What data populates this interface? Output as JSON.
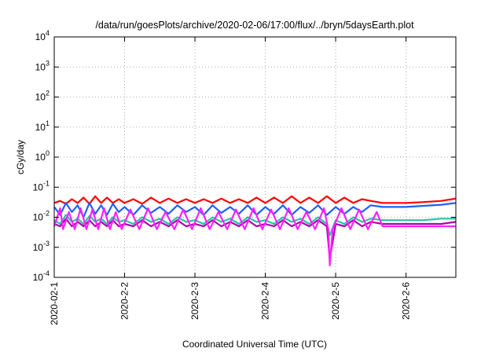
{
  "chart_data": {
    "type": "line",
    "title": "/data/run/goesPlots/archive/2020-02-06/17:00/flux/../bryn/5daysEarth.plot",
    "xlabel": "Coordinated Universal Time (UTC)",
    "ylabel": "cGy/day",
    "yscale": "log",
    "ylim": [
      0.0001,
      10000
    ],
    "xlim": [
      "2020-02-01",
      "2020-02-06 17:00"
    ],
    "grid": true,
    "legend": "none",
    "x_ticks": [
      "2020-02-1",
      "2020-2-2",
      "2020-2-3",
      "2020-2-4",
      "2020-2-5",
      "2020-2-6"
    ],
    "y_ticks": [
      {
        "value": 0.0001,
        "mant": "10",
        "exp": "-4"
      },
      {
        "value": 0.001,
        "mant": "10",
        "exp": "-3"
      },
      {
        "value": 0.01,
        "mant": "10",
        "exp": "-2"
      },
      {
        "value": 0.1,
        "mant": "10",
        "exp": "-1"
      },
      {
        "value": 1,
        "mant": "10",
        "exp": "0"
      },
      {
        "value": 10,
        "mant": "10",
        "exp": "1"
      },
      {
        "value": 100,
        "mant": "10",
        "exp": "2"
      },
      {
        "value": 1000,
        "mant": "10",
        "exp": "3"
      },
      {
        "value": 10000,
        "mant": "10",
        "exp": "4"
      }
    ],
    "series": [
      {
        "color": "#ff0000",
        "values": [
          [
            "2020-02-01 00:00",
            0.03
          ],
          [
            "2020-02-01 02:00",
            0.035
          ],
          [
            "2020-02-01 04:00",
            0.028
          ],
          [
            "2020-02-01 06:00",
            0.04
          ],
          [
            "2020-02-01 08:00",
            0.03
          ],
          [
            "2020-02-01 10:00",
            0.045
          ],
          [
            "2020-02-01 12:00",
            0.028
          ],
          [
            "2020-02-01 14:00",
            0.05
          ],
          [
            "2020-02-01 16:00",
            0.03
          ],
          [
            "2020-02-01 18:00",
            0.045
          ],
          [
            "2020-02-01 20:00",
            0.03
          ],
          [
            "2020-02-01 22:00",
            0.04
          ],
          [
            "2020-02-02 00:00",
            0.03
          ],
          [
            "2020-02-02 03:00",
            0.04
          ],
          [
            "2020-02-02 06:00",
            0.028
          ],
          [
            "2020-02-02 09:00",
            0.045
          ],
          [
            "2020-02-02 12:00",
            0.03
          ],
          [
            "2020-02-02 15:00",
            0.042
          ],
          [
            "2020-02-02 18:00",
            0.03
          ],
          [
            "2020-02-02 21:00",
            0.04
          ],
          [
            "2020-02-03 00:00",
            0.03
          ],
          [
            "2020-02-03 03:00",
            0.04
          ],
          [
            "2020-02-03 06:00",
            0.03
          ],
          [
            "2020-02-03 09:00",
            0.042
          ],
          [
            "2020-02-03 12:00",
            0.03
          ],
          [
            "2020-02-03 15:00",
            0.04
          ],
          [
            "2020-02-03 18:00",
            0.03
          ],
          [
            "2020-02-03 21:00",
            0.045
          ],
          [
            "2020-02-04 00:00",
            0.03
          ],
          [
            "2020-02-04 03:00",
            0.045
          ],
          [
            "2020-02-04 06:00",
            0.03
          ],
          [
            "2020-02-04 09:00",
            0.05
          ],
          [
            "2020-02-04 12:00",
            0.03
          ],
          [
            "2020-02-04 15:00",
            0.045
          ],
          [
            "2020-02-04 18:00",
            0.03
          ],
          [
            "2020-02-04 21:00",
            0.05
          ],
          [
            "2020-02-05 00:00",
            0.03
          ],
          [
            "2020-02-05 03:00",
            0.045
          ],
          [
            "2020-02-05 06:00",
            0.03
          ],
          [
            "2020-02-05 09:00",
            0.04
          ],
          [
            "2020-02-05 12:00",
            0.035
          ],
          [
            "2020-02-05 16:00",
            0.03
          ],
          [
            "2020-02-05 20:00",
            0.03
          ],
          [
            "2020-02-06 00:00",
            0.03
          ],
          [
            "2020-02-06 06:00",
            0.032
          ],
          [
            "2020-02-06 12:00",
            0.035
          ],
          [
            "2020-02-06 17:00",
            0.042
          ]
        ]
      },
      {
        "color": "#1f5fff",
        "values": [
          [
            "2020-02-01 00:00",
            0.022
          ],
          [
            "2020-02-01 02:00",
            0.012
          ],
          [
            "2020-02-01 04:00",
            0.03
          ],
          [
            "2020-02-01 06:00",
            0.015
          ],
          [
            "2020-02-01 08:00",
            0.025
          ],
          [
            "2020-02-01 10:00",
            0.01
          ],
          [
            "2020-02-01 12:00",
            0.03
          ],
          [
            "2020-02-01 14:00",
            0.013
          ],
          [
            "2020-02-01 16:00",
            0.025
          ],
          [
            "2020-02-01 18:00",
            0.012
          ],
          [
            "2020-02-01 20:00",
            0.028
          ],
          [
            "2020-02-01 22:00",
            0.015
          ],
          [
            "2020-02-02 00:00",
            0.022
          ],
          [
            "2020-02-02 03:00",
            0.012
          ],
          [
            "2020-02-02 06:00",
            0.025
          ],
          [
            "2020-02-02 09:00",
            0.014
          ],
          [
            "2020-02-02 12:00",
            0.022
          ],
          [
            "2020-02-02 15:00",
            0.013
          ],
          [
            "2020-02-02 18:00",
            0.025
          ],
          [
            "2020-02-02 21:00",
            0.015
          ],
          [
            "2020-02-03 00:00",
            0.022
          ],
          [
            "2020-02-03 03:00",
            0.012
          ],
          [
            "2020-02-03 06:00",
            0.025
          ],
          [
            "2020-02-03 09:00",
            0.014
          ],
          [
            "2020-02-03 12:00",
            0.022
          ],
          [
            "2020-02-03 15:00",
            0.013
          ],
          [
            "2020-02-03 18:00",
            0.025
          ],
          [
            "2020-02-03 21:00",
            0.012
          ],
          [
            "2020-02-04 00:00",
            0.022
          ],
          [
            "2020-02-04 03:00",
            0.013
          ],
          [
            "2020-02-04 06:00",
            0.025
          ],
          [
            "2020-02-04 09:00",
            0.012
          ],
          [
            "2020-02-04 12:00",
            0.022
          ],
          [
            "2020-02-04 15:00",
            0.014
          ],
          [
            "2020-02-04 18:00",
            0.025
          ],
          [
            "2020-02-04 21:00",
            0.012
          ],
          [
            "2020-02-05 00:00",
            0.022
          ],
          [
            "2020-02-05 03:00",
            0.013
          ],
          [
            "2020-02-05 06:00",
            0.022
          ],
          [
            "2020-02-05 09:00",
            0.015
          ],
          [
            "2020-02-05 12:00",
            0.025
          ],
          [
            "2020-02-05 16:00",
            0.022
          ],
          [
            "2020-02-05 20:00",
            0.022
          ],
          [
            "2020-02-06 00:00",
            0.022
          ],
          [
            "2020-02-06 06:00",
            0.024
          ],
          [
            "2020-02-06 12:00",
            0.026
          ],
          [
            "2020-02-06 17:00",
            0.03
          ]
        ]
      },
      {
        "color": "#20c8a0",
        "values": [
          [
            "2020-02-01 00:00",
            0.008
          ],
          [
            "2020-02-01 02:00",
            0.006
          ],
          [
            "2020-02-01 04:00",
            0.012
          ],
          [
            "2020-02-01 06:00",
            0.007
          ],
          [
            "2020-02-01 08:00",
            0.009
          ],
          [
            "2020-02-01 10:00",
            0.006
          ],
          [
            "2020-02-01 12:00",
            0.011
          ],
          [
            "2020-02-01 14:00",
            0.007
          ],
          [
            "2020-02-01 16:00",
            0.009
          ],
          [
            "2020-02-01 18:00",
            0.006
          ],
          [
            "2020-02-01 20:00",
            0.01
          ],
          [
            "2020-02-01 22:00",
            0.007
          ],
          [
            "2020-02-02 00:00",
            0.008
          ],
          [
            "2020-02-02 03:00",
            0.006
          ],
          [
            "2020-02-02 06:00",
            0.01
          ],
          [
            "2020-02-02 09:00",
            0.007
          ],
          [
            "2020-02-02 12:00",
            0.009
          ],
          [
            "2020-02-02 15:00",
            0.006
          ],
          [
            "2020-02-02 18:00",
            0.01
          ],
          [
            "2020-02-02 21:00",
            0.007
          ],
          [
            "2020-02-03 00:00",
            0.008
          ],
          [
            "2020-02-03 03:00",
            0.006
          ],
          [
            "2020-02-03 06:00",
            0.01
          ],
          [
            "2020-02-03 09:00",
            0.007
          ],
          [
            "2020-02-03 12:00",
            0.009
          ],
          [
            "2020-02-03 15:00",
            0.006
          ],
          [
            "2020-02-03 18:00",
            0.01
          ],
          [
            "2020-02-03 21:00",
            0.007
          ],
          [
            "2020-02-04 00:00",
            0.008
          ],
          [
            "2020-02-04 03:00",
            0.006
          ],
          [
            "2020-02-04 06:00",
            0.01
          ],
          [
            "2020-02-04 09:00",
            0.007
          ],
          [
            "2020-02-04 12:00",
            0.009
          ],
          [
            "2020-02-04 15:00",
            0.006
          ],
          [
            "2020-02-04 18:00",
            0.01
          ],
          [
            "2020-02-04 21:00",
            0.006
          ],
          [
            "2020-02-04 22:00",
            0.0025
          ],
          [
            "2020-02-05 00:00",
            0.008
          ],
          [
            "2020-02-05 03:00",
            0.006
          ],
          [
            "2020-02-05 06:00",
            0.01
          ],
          [
            "2020-02-05 09:00",
            0.007
          ],
          [
            "2020-02-05 12:00",
            0.009
          ],
          [
            "2020-02-05 16:00",
            0.008
          ],
          [
            "2020-02-05 20:00",
            0.008
          ],
          [
            "2020-02-06 00:00",
            0.008
          ],
          [
            "2020-02-06 06:00",
            0.008
          ],
          [
            "2020-02-06 12:00",
            0.009
          ],
          [
            "2020-02-06 17:00",
            0.009
          ]
        ]
      },
      {
        "color": "#b000b0",
        "values": [
          [
            "2020-02-01 00:00",
            0.006
          ],
          [
            "2020-02-01 02:00",
            0.005
          ],
          [
            "2020-02-01 04:00",
            0.009
          ],
          [
            "2020-02-01 06:00",
            0.005
          ],
          [
            "2020-02-01 08:00",
            0.007
          ],
          [
            "2020-02-01 10:00",
            0.005
          ],
          [
            "2020-02-01 12:00",
            0.008
          ],
          [
            "2020-02-01 14:00",
            0.005
          ],
          [
            "2020-02-01 16:00",
            0.007
          ],
          [
            "2020-02-01 18:00",
            0.005
          ],
          [
            "2020-02-01 20:00",
            0.008
          ],
          [
            "2020-02-01 22:00",
            0.005
          ],
          [
            "2020-02-02 00:00",
            0.006
          ],
          [
            "2020-02-02 03:00",
            0.005
          ],
          [
            "2020-02-02 06:00",
            0.008
          ],
          [
            "2020-02-02 09:00",
            0.005
          ],
          [
            "2020-02-02 12:00",
            0.007
          ],
          [
            "2020-02-02 15:00",
            0.005
          ],
          [
            "2020-02-02 18:00",
            0.008
          ],
          [
            "2020-02-02 21:00",
            0.005
          ],
          [
            "2020-02-03 00:00",
            0.006
          ],
          [
            "2020-02-03 03:00",
            0.005
          ],
          [
            "2020-02-03 06:00",
            0.008
          ],
          [
            "2020-02-03 09:00",
            0.005
          ],
          [
            "2020-02-03 12:00",
            0.007
          ],
          [
            "2020-02-03 15:00",
            0.005
          ],
          [
            "2020-02-03 18:00",
            0.008
          ],
          [
            "2020-02-03 21:00",
            0.005
          ],
          [
            "2020-02-04 00:00",
            0.006
          ],
          [
            "2020-02-04 03:00",
            0.005
          ],
          [
            "2020-02-04 06:00",
            0.008
          ],
          [
            "2020-02-04 09:00",
            0.005
          ],
          [
            "2020-02-04 12:00",
            0.007
          ],
          [
            "2020-02-04 15:00",
            0.005
          ],
          [
            "2020-02-04 18:00",
            0.008
          ],
          [
            "2020-02-04 21:00",
            0.005
          ],
          [
            "2020-02-04 22:00",
            0.0004
          ],
          [
            "2020-02-05 00:00",
            0.006
          ],
          [
            "2020-02-05 03:00",
            0.005
          ],
          [
            "2020-02-05 06:00",
            0.008
          ],
          [
            "2020-02-05 09:00",
            0.005
          ],
          [
            "2020-02-05 12:00",
            0.007
          ],
          [
            "2020-02-05 16:00",
            0.006
          ],
          [
            "2020-02-05 20:00",
            0.006
          ],
          [
            "2020-02-06 00:00",
            0.006
          ],
          [
            "2020-02-06 06:00",
            0.006
          ],
          [
            "2020-02-06 12:00",
            0.006
          ],
          [
            "2020-02-06 17:00",
            0.007
          ]
        ]
      },
      {
        "color": "#ff20ff",
        "values": [
          [
            "2020-02-01 00:00",
            0.005
          ],
          [
            "2020-02-01 02:00",
            0.02
          ],
          [
            "2020-02-01 03:00",
            0.004
          ],
          [
            "2020-02-01 05:00",
            0.015
          ],
          [
            "2020-02-01 07:00",
            0.004
          ],
          [
            "2020-02-01 09:00",
            0.02
          ],
          [
            "2020-02-01 11:00",
            0.004
          ],
          [
            "2020-02-01 13:00",
            0.018
          ],
          [
            "2020-02-01 15:00",
            0.004
          ],
          [
            "2020-02-01 17:00",
            0.02
          ],
          [
            "2020-02-01 19:00",
            0.004
          ],
          [
            "2020-02-01 21:00",
            0.015
          ],
          [
            "2020-02-01 23:00",
            0.004
          ],
          [
            "2020-02-02 02:00",
            0.018
          ],
          [
            "2020-02-02 05:00",
            0.004
          ],
          [
            "2020-02-02 08:00",
            0.02
          ],
          [
            "2020-02-02 11:00",
            0.004
          ],
          [
            "2020-02-02 14:00",
            0.015
          ],
          [
            "2020-02-02 17:00",
            0.004
          ],
          [
            "2020-02-02 20:00",
            0.018
          ],
          [
            "2020-02-02 23:00",
            0.004
          ],
          [
            "2020-02-03 02:00",
            0.02
          ],
          [
            "2020-02-03 05:00",
            0.004
          ],
          [
            "2020-02-03 08:00",
            0.015
          ],
          [
            "2020-02-03 11:00",
            0.004
          ],
          [
            "2020-02-03 14:00",
            0.018
          ],
          [
            "2020-02-03 17:00",
            0.004
          ],
          [
            "2020-02-03 20:00",
            0.02
          ],
          [
            "2020-02-03 23:00",
            0.004
          ],
          [
            "2020-02-04 02:00",
            0.018
          ],
          [
            "2020-02-04 05:00",
            0.004
          ],
          [
            "2020-02-04 08:00",
            0.02
          ],
          [
            "2020-02-04 11:00",
            0.004
          ],
          [
            "2020-02-04 14:00",
            0.015
          ],
          [
            "2020-02-04 17:00",
            0.004
          ],
          [
            "2020-02-04 20:00",
            0.02
          ],
          [
            "2020-02-04 21:30",
            0.004
          ],
          [
            "2020-02-04 22:00",
            0.00025
          ],
          [
            "2020-02-04 23:00",
            0.004
          ],
          [
            "2020-02-05 02:00",
            0.02
          ],
          [
            "2020-02-05 05:00",
            0.004
          ],
          [
            "2020-02-05 08:00",
            0.018
          ],
          [
            "2020-02-05 11:00",
            0.004
          ],
          [
            "2020-02-05 14:00",
            0.015
          ],
          [
            "2020-02-05 16:00",
            0.005
          ],
          [
            "2020-02-05 20:00",
            0.005
          ],
          [
            "2020-02-06 00:00",
            0.005
          ],
          [
            "2020-02-06 06:00",
            0.005
          ],
          [
            "2020-02-06 12:00",
            0.005
          ],
          [
            "2020-02-06 17:00",
            0.005
          ]
        ]
      }
    ]
  }
}
